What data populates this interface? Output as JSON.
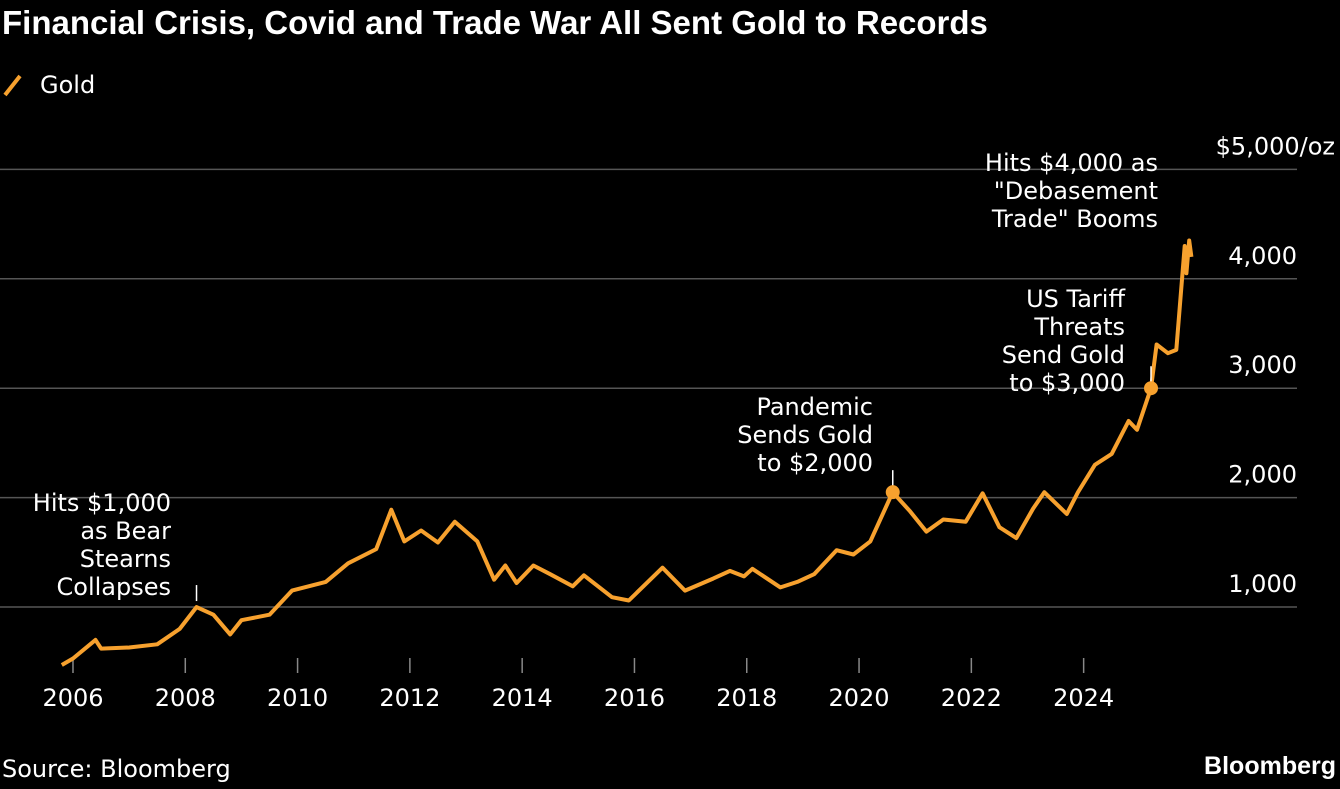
{
  "chart_data": {
    "type": "line",
    "title": "Financial Crisis, Covid and Trade War All Sent Gold to Records",
    "source": "Source: Bloomberg",
    "brand": "Bloomberg",
    "legend": "top-left",
    "grid": true,
    "x": [
      2005.8,
      2006.0,
      2006.4,
      2006.5,
      2007.0,
      2007.5,
      2007.9,
      2008.2,
      2008.5,
      2008.8,
      2009.0,
      2009.5,
      2009.9,
      2010.5,
      2010.9,
      2011.4,
      2011.67,
      2011.9,
      2012.2,
      2012.5,
      2012.8,
      2013.2,
      2013.5,
      2013.7,
      2013.9,
      2014.2,
      2014.5,
      2014.9,
      2015.1,
      2015.6,
      2015.9,
      2016.5,
      2016.9,
      2017.4,
      2017.7,
      2017.95,
      2018.1,
      2018.6,
      2018.9,
      2019.2,
      2019.6,
      2019.9,
      2020.2,
      2020.6,
      2020.9,
      2021.2,
      2021.5,
      2021.9,
      2022.2,
      2022.5,
      2022.8,
      2023.1,
      2023.3,
      2023.7,
      2023.9,
      2024.2,
      2024.5,
      2024.8,
      2024.95,
      2025.2,
      2025.3,
      2025.5,
      2025.65,
      2025.8,
      2025.83,
      2025.88,
      2025.92
    ],
    "series": [
      {
        "name": "Gold",
        "color": "#f7a12e",
        "values": [
          470,
          530,
          700,
          620,
          630,
          660,
          800,
          1000,
          930,
          750,
          880,
          930,
          1150,
          1230,
          1400,
          1530,
          1890,
          1600,
          1700,
          1590,
          1780,
          1600,
          1250,
          1380,
          1220,
          1380,
          1300,
          1190,
          1290,
          1090,
          1060,
          1360,
          1150,
          1260,
          1330,
          1280,
          1350,
          1180,
          1230,
          1300,
          1520,
          1480,
          1600,
          2050,
          1880,
          1690,
          1800,
          1780,
          2040,
          1730,
          1630,
          1900,
          2050,
          1850,
          2050,
          2300,
          2400,
          2700,
          2620,
          3000,
          3400,
          3320,
          3350,
          4300,
          4050,
          4350,
          4200
        ]
      }
    ],
    "xlim": [
      2004.7,
      2027.8
    ],
    "ylim": [
      400,
      5200
    ],
    "xticks": [
      2006,
      2008,
      2010,
      2012,
      2014,
      2016,
      2018,
      2020,
      2022,
      2024
    ],
    "yticks": [
      {
        "value": 1000,
        "label": "1,000"
      },
      {
        "value": 2000,
        "label": "2,000"
      },
      {
        "value": 3000,
        "label": "3,000"
      },
      {
        "value": 4000,
        "label": "4,000"
      },
      {
        "value": 5000,
        "label": "$5,000/oz"
      }
    ],
    "annotations": [
      {
        "lines": [
          "Hits $1,000",
          "as Bear",
          "Stearns",
          "Collapses"
        ],
        "x": 2008.2,
        "y": 1000,
        "marker": false
      },
      {
        "lines": [
          "Pandemic",
          "Sends Gold",
          "to $2,000"
        ],
        "x": 2020.6,
        "y": 2050,
        "marker": true
      },
      {
        "lines": [
          "US Tariff",
          "Threats",
          "Send Gold",
          "to $3,000"
        ],
        "x": 2025.2,
        "y": 3000,
        "marker": true
      },
      {
        "lines": [
          "Hits $4,000 as",
          "\"Debasement",
          "Trade\" Booms"
        ]
      }
    ]
  }
}
